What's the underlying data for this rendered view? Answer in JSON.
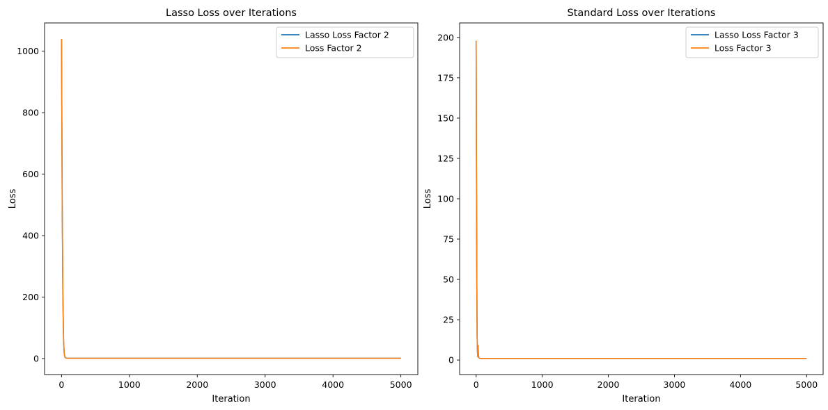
{
  "chart_data": [
    {
      "type": "line",
      "title": "Lasso Loss over Iterations",
      "xlabel": "Iteration",
      "ylabel": "Loss",
      "xlim": [
        -250,
        5250
      ],
      "ylim": [
        -52,
        1092
      ],
      "xticks": [
        0,
        1000,
        2000,
        3000,
        4000,
        5000
      ],
      "yticks": [
        0,
        200,
        400,
        600,
        800,
        1000
      ],
      "grid": false,
      "legend_position": "top-right",
      "series": [
        {
          "name": "Lasso Loss Factor 2",
          "color": "#1f77b4",
          "x": [
            0,
            10,
            20,
            30,
            40,
            50,
            60,
            80,
            100,
            200,
            500,
            1000,
            2000,
            3000,
            4000,
            5000
          ],
          "y": [
            1040,
            500,
            200,
            60,
            15,
            5,
            2,
            1.2,
            1,
            1,
            1,
            1,
            1,
            1,
            1,
            1
          ]
        },
        {
          "name": "Loss Factor 2",
          "color": "#ff7f0e",
          "x": [
            0,
            10,
            20,
            30,
            40,
            50,
            60,
            80,
            100,
            200,
            500,
            1000,
            2000,
            3000,
            4000,
            5000
          ],
          "y": [
            1040,
            500,
            200,
            60,
            15,
            5,
            2,
            1.2,
            1,
            1,
            1,
            1,
            1,
            1,
            1,
            1
          ]
        }
      ]
    },
    {
      "type": "line",
      "title": "Standard Loss over Iterations",
      "xlabel": "Iteration",
      "ylabel": "Loss",
      "xlim": [
        -250,
        5250
      ],
      "ylim": [
        -9,
        209
      ],
      "xticks": [
        0,
        1000,
        2000,
        3000,
        4000,
        5000
      ],
      "yticks": [
        0,
        25,
        50,
        75,
        100,
        125,
        150,
        175,
        200
      ],
      "grid": false,
      "legend_position": "top-right",
      "series": [
        {
          "name": "Lasso Loss Factor  3",
          "color": "#1f77b4",
          "x": [
            0,
            5,
            10,
            15,
            20,
            25,
            30,
            35,
            40,
            50,
            60,
            80,
            100,
            200,
            500,
            1000,
            2000,
            3000,
            4000,
            5000
          ],
          "y": [
            198,
            120,
            50,
            15,
            5,
            2,
            9,
            3,
            1.5,
            1.2,
            1,
            1,
            1,
            1,
            1,
            1,
            1,
            1,
            1,
            1
          ]
        },
        {
          "name": "Loss Factor 3",
          "color": "#ff7f0e",
          "x": [
            0,
            5,
            10,
            15,
            20,
            25,
            30,
            35,
            40,
            50,
            60,
            80,
            100,
            200,
            500,
            1000,
            2000,
            3000,
            4000,
            5000
          ],
          "y": [
            198,
            120,
            50,
            15,
            5,
            2,
            9,
            3,
            1.5,
            1.2,
            1,
            1,
            1,
            1,
            1,
            1,
            1,
            1,
            1,
            1
          ]
        }
      ]
    }
  ]
}
